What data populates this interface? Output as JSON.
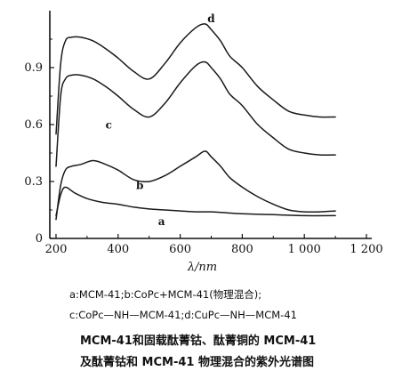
{
  "chart_data": {
    "type": "line",
    "title": "MCM-41和固载酞菁钴、酞菁铜的 MCM-41 及酞菁钴和 MCM-41 物理混合的紫外光谱图",
    "xlabel": "λ/nm",
    "ylabel": "",
    "xlim": [
      180,
      1200
    ],
    "ylim": [
      0,
      1.2
    ],
    "x_ticks": [
      "200",
      "400",
      "600",
      "800",
      "1 000",
      "1 200"
    ],
    "y_ticks": [
      "0",
      "0.3",
      "0.6",
      "0.9"
    ],
    "grid": false,
    "series": [
      {
        "name": "a",
        "x": [
          200,
          215,
          230,
          260,
          300,
          350,
          400,
          450,
          500,
          550,
          600,
          650,
          700,
          750,
          800,
          900,
          1000,
          1100
        ],
        "y": [
          0.12,
          0.23,
          0.27,
          0.24,
          0.21,
          0.19,
          0.18,
          0.165,
          0.155,
          0.15,
          0.145,
          0.14,
          0.14,
          0.135,
          0.13,
          0.125,
          0.12,
          0.12
        ]
      },
      {
        "name": "b",
        "x": [
          200,
          215,
          230,
          250,
          280,
          320,
          360,
          400,
          450,
          500,
          550,
          600,
          650,
          680,
          700,
          730,
          760,
          800,
          850,
          900,
          950,
          1000,
          1050,
          1100
        ],
        "y": [
          0.1,
          0.28,
          0.36,
          0.38,
          0.39,
          0.41,
          0.39,
          0.36,
          0.31,
          0.3,
          0.33,
          0.38,
          0.43,
          0.46,
          0.43,
          0.38,
          0.32,
          0.27,
          0.22,
          0.18,
          0.15,
          0.14,
          0.14,
          0.145
        ]
      },
      {
        "name": "c",
        "x": [
          200,
          215,
          230,
          250,
          280,
          320,
          360,
          400,
          450,
          500,
          550,
          600,
          650,
          680,
          700,
          730,
          760,
          800,
          850,
          900,
          950,
          1000,
          1050,
          1100
        ],
        "y": [
          0.38,
          0.75,
          0.84,
          0.86,
          0.86,
          0.84,
          0.8,
          0.75,
          0.68,
          0.64,
          0.71,
          0.82,
          0.91,
          0.93,
          0.9,
          0.84,
          0.76,
          0.7,
          0.6,
          0.53,
          0.47,
          0.45,
          0.44,
          0.44
        ]
      },
      {
        "name": "d",
        "x": [
          200,
          215,
          230,
          250,
          280,
          320,
          360,
          400,
          450,
          500,
          550,
          600,
          650,
          680,
          700,
          730,
          760,
          800,
          850,
          900,
          950,
          1000,
          1050,
          1100
        ],
        "y": [
          0.55,
          0.92,
          1.04,
          1.06,
          1.06,
          1.04,
          1.0,
          0.95,
          0.88,
          0.84,
          0.92,
          1.03,
          1.11,
          1.13,
          1.1,
          1.04,
          0.96,
          0.9,
          0.8,
          0.73,
          0.67,
          0.65,
          0.64,
          0.64
        ]
      }
    ],
    "curve_labels": [
      {
        "text": "a",
        "x": 540,
        "y": 0.07
      },
      {
        "text": "b",
        "x": 470,
        "y": 0.26
      },
      {
        "text": "c",
        "x": 370,
        "y": 0.58
      },
      {
        "text": "d",
        "x": 700,
        "y": 1.14
      }
    ]
  },
  "caption": {
    "legend_line_1": "a:MCM-41;b:CoPc+MCM-41(物理混合);",
    "legend_line_2": "c:CoPc—NH—MCM-41;d:CuPc—NH—MCM-41",
    "title_line_1": "MCM-41和固载酞菁钴、酞菁铜的 MCM-41",
    "title_line_2": "及酞菁钴和 MCM-41 物理混合的紫外光谱图"
  }
}
